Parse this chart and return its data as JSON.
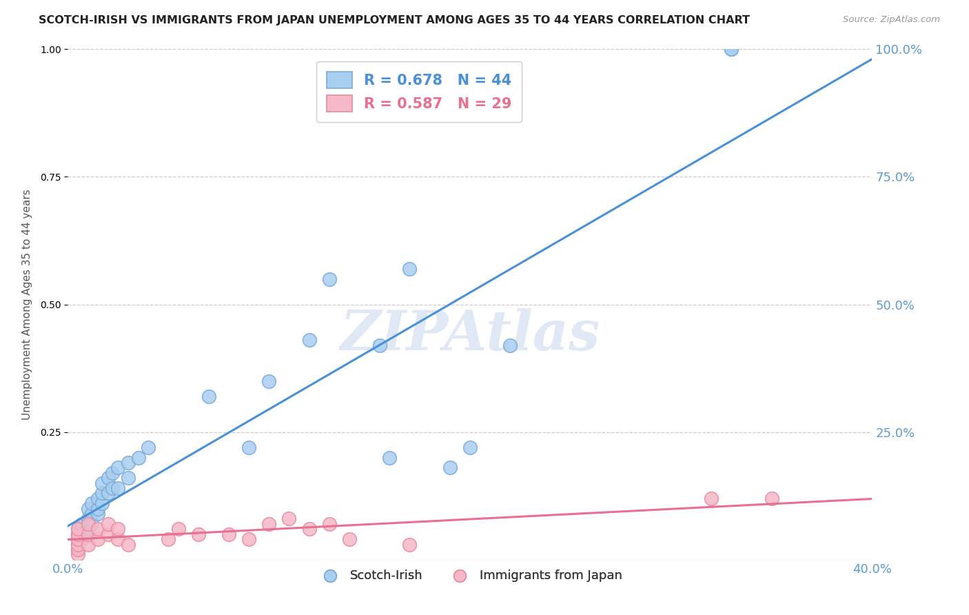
{
  "title": "SCOTCH-IRISH VS IMMIGRANTS FROM JAPAN UNEMPLOYMENT AMONG AGES 35 TO 44 YEARS CORRELATION CHART",
  "source": "Source: ZipAtlas.com",
  "ylabel": "Unemployment Among Ages 35 to 44 years",
  "x_min": 0.0,
  "x_max": 0.4,
  "y_min": 0.0,
  "y_max": 1.0,
  "x_ticks": [
    0.0,
    0.1,
    0.2,
    0.3,
    0.4
  ],
  "x_tick_labels": [
    "0.0%",
    "",
    "",
    "",
    "40.0%"
  ],
  "y_ticks": [
    0.25,
    0.5,
    0.75,
    1.0
  ],
  "y_tick_labels": [
    "25.0%",
    "50.0%",
    "75.0%",
    "100.0%"
  ],
  "scotch_irish_color": "#A8CEF0",
  "japan_color": "#F5B8C8",
  "scotch_irish_edge_color": "#7AAAD8",
  "japan_edge_color": "#E88AA0",
  "scotch_irish_line_color": "#4A90D9",
  "japan_line_color": "#E87090",
  "R_scotch": 0.678,
  "N_scotch": 44,
  "R_japan": 0.587,
  "N_japan": 29,
  "scotch_irish_x": [
    0.005,
    0.005,
    0.005,
    0.005,
    0.005,
    0.007,
    0.007,
    0.007,
    0.01,
    0.01,
    0.01,
    0.01,
    0.012,
    0.012,
    0.012,
    0.015,
    0.015,
    0.015,
    0.017,
    0.017,
    0.017,
    0.02,
    0.02,
    0.022,
    0.022,
    0.025,
    0.025,
    0.03,
    0.03,
    0.035,
    0.04,
    0.07,
    0.09,
    0.1,
    0.12,
    0.13,
    0.155,
    0.16,
    0.17,
    0.19,
    0.2,
    0.22,
    0.33,
    0.33
  ],
  "scotch_irish_y": [
    0.02,
    0.03,
    0.04,
    0.05,
    0.06,
    0.04,
    0.05,
    0.07,
    0.05,
    0.06,
    0.08,
    0.1,
    0.07,
    0.09,
    0.11,
    0.09,
    0.1,
    0.12,
    0.11,
    0.13,
    0.15,
    0.13,
    0.16,
    0.14,
    0.17,
    0.14,
    0.18,
    0.16,
    0.19,
    0.2,
    0.22,
    0.32,
    0.22,
    0.35,
    0.43,
    0.55,
    0.42,
    0.2,
    0.57,
    0.18,
    0.22,
    0.42,
    1.0,
    1.0
  ],
  "japan_x": [
    0.005,
    0.005,
    0.005,
    0.005,
    0.005,
    0.005,
    0.01,
    0.01,
    0.01,
    0.015,
    0.015,
    0.02,
    0.02,
    0.025,
    0.025,
    0.03,
    0.05,
    0.055,
    0.065,
    0.08,
    0.09,
    0.1,
    0.11,
    0.12,
    0.13,
    0.14,
    0.17,
    0.32,
    0.35
  ],
  "japan_y": [
    0.01,
    0.02,
    0.03,
    0.04,
    0.05,
    0.06,
    0.03,
    0.05,
    0.07,
    0.04,
    0.06,
    0.05,
    0.07,
    0.04,
    0.06,
    0.03,
    0.04,
    0.06,
    0.05,
    0.05,
    0.04,
    0.07,
    0.08,
    0.06,
    0.07,
    0.04,
    0.03,
    0.12,
    0.12
  ],
  "background_color": "#FFFFFF",
  "grid_color": "#CCCCCC",
  "watermark": "ZIPAtlas",
  "tick_color": "#5B9BD5",
  "label_color": "#555555"
}
